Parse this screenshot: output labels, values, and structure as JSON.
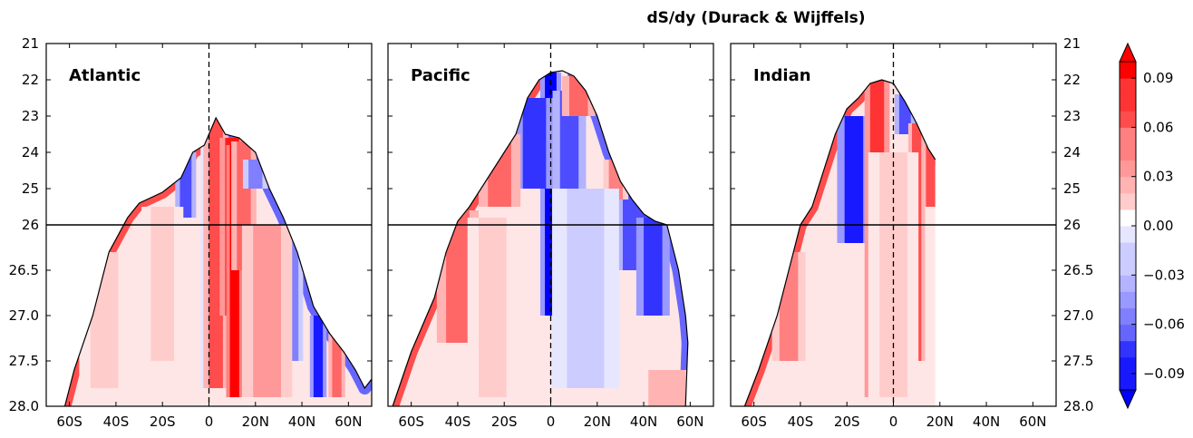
{
  "chart_data": {
    "type": "heatmap",
    "title": "dS/dy (Durack & Wijffels)",
    "x": {
      "range": [
        -70,
        70
      ],
      "ticks": [
        -60,
        -40,
        -20,
        0,
        20,
        40,
        60
      ],
      "tick_labels": [
        "60S",
        "40S",
        "20S",
        "0",
        "20N",
        "40N",
        "60N"
      ]
    },
    "y": {
      "inverted": true,
      "upper_segment": {
        "range": [
          21,
          26
        ],
        "ticks": [
          21,
          22,
          23,
          24,
          25,
          26
        ],
        "tick_labels": [
          "21",
          "22",
          "23",
          "24",
          "25",
          "26"
        ]
      },
      "lower_segment": {
        "range": [
          26,
          28
        ],
        "ticks": [
          26.5,
          27.0,
          27.5,
          28.0
        ],
        "tick_labels": [
          "26.5",
          "27.0",
          "27.5",
          "28.0"
        ]
      },
      "break_value": 26
    },
    "colorbar": {
      "ticks": [
        0.09,
        0.06,
        0.03,
        0.0,
        -0.03,
        -0.06,
        -0.09
      ],
      "tick_labels": [
        "0.09",
        "0.06",
        "0.03",
        "0.00",
        "−0.03",
        "−0.06",
        "−0.09"
      ],
      "range": [
        -0.1,
        0.1
      ],
      "levels": 20,
      "extend": "both",
      "colors": {
        "negative": "#0000ff",
        "zero": "#ffffff",
        "positive": "#ff0000"
      }
    },
    "panels": [
      {
        "name": "Atlantic",
        "outcrop": [
          [
            -62,
            28.0
          ],
          [
            -58,
            27.6
          ],
          [
            -50,
            27.0
          ],
          [
            -43,
            26.3
          ],
          [
            -35,
            25.8
          ],
          [
            -30,
            25.4
          ],
          [
            -20,
            25.1
          ],
          [
            -12,
            24.7
          ],
          [
            -7,
            24.0
          ],
          [
            -2,
            23.8
          ],
          [
            3,
            23.05
          ],
          [
            7,
            23.5
          ],
          [
            13,
            23.6
          ],
          [
            20,
            24.0
          ],
          [
            26,
            25.0
          ],
          [
            32,
            25.8
          ],
          [
            38,
            26.3
          ],
          [
            45,
            26.9
          ],
          [
            52,
            27.2
          ],
          [
            58,
            27.4
          ],
          [
            63,
            27.6
          ],
          [
            67,
            27.8
          ],
          [
            70,
            27.7
          ]
        ],
        "features": [
          {
            "x": 0,
            "y0": 23.5,
            "y1": 27.8,
            "w": 2,
            "v": -0.02
          },
          {
            "x": 3,
            "y0": 23.1,
            "y1": 27.8,
            "w": 3,
            "v": 0.07
          },
          {
            "x": 10,
            "y0": 23.6,
            "y1": 27.0,
            "w": 3,
            "v": 0.09
          },
          {
            "x": 11,
            "y0": 23.8,
            "y1": 27.9,
            "w": 2,
            "v": 0.1
          },
          {
            "x": 15,
            "y0": 23.7,
            "y1": 26.5,
            "w": 3,
            "v": 0.06
          },
          {
            "x": -10,
            "y0": 24.0,
            "y1": 25.8,
            "w": 2.5,
            "v": -0.07
          },
          {
            "x": 20,
            "y0": 24.2,
            "y1": 25.0,
            "w": 3,
            "v": -0.05
          },
          {
            "x": 36,
            "y0": 26.0,
            "y1": 27.5,
            "w": 2.5,
            "v": -0.05
          },
          {
            "x": 47,
            "y0": 27.0,
            "y1": 27.9,
            "w": 2,
            "v": -0.09
          },
          {
            "x": 55,
            "y0": 27.2,
            "y1": 27.9,
            "w": 2,
            "v": 0.06
          },
          {
            "x": 25,
            "y0": 26.0,
            "y1": 27.9,
            "w": 6,
            "v": 0.035
          },
          {
            "x": -45,
            "y0": 26.3,
            "y1": 27.8,
            "w": 6,
            "v": 0.015
          },
          {
            "x": -20,
            "y0": 25.5,
            "y1": 27.5,
            "w": 5,
            "v": 0.015
          }
        ]
      },
      {
        "name": "Pacific",
        "outcrop": [
          [
            -68,
            28.0
          ],
          [
            -60,
            27.4
          ],
          [
            -50,
            26.8
          ],
          [
            -45,
            26.3
          ],
          [
            -40,
            25.9
          ],
          [
            -35,
            25.5
          ],
          [
            -25,
            24.5
          ],
          [
            -15,
            23.5
          ],
          [
            -10,
            22.5
          ],
          [
            -5,
            22.0
          ],
          [
            0,
            21.8
          ],
          [
            5,
            21.75
          ],
          [
            10,
            21.9
          ],
          [
            15,
            22.3
          ],
          [
            20,
            23.0
          ],
          [
            25,
            24.0
          ],
          [
            30,
            24.8
          ],
          [
            35,
            25.3
          ],
          [
            40,
            25.7
          ],
          [
            45,
            25.9
          ],
          [
            50,
            26.0
          ],
          [
            55,
            26.5
          ],
          [
            58,
            27.0
          ],
          [
            59,
            27.3
          ],
          [
            58,
            28.0
          ]
        ],
        "features": [
          {
            "x": 0,
            "y0": 21.8,
            "y1": 27.0,
            "w": 2.5,
            "v": -0.1
          },
          {
            "x": -7,
            "y0": 22.5,
            "y1": 25.0,
            "w": 5,
            "v": -0.08
          },
          {
            "x": 8,
            "y0": 22.3,
            "y1": 25.5,
            "w": 4,
            "v": -0.07
          },
          {
            "x": 12,
            "y0": 21.9,
            "y1": 23.0,
            "w": 4,
            "v": 0.06
          },
          {
            "x": -22,
            "y0": 23.5,
            "y1": 25.5,
            "w": 5,
            "v": 0.06
          },
          {
            "x": -40,
            "y0": 25.6,
            "y1": 27.3,
            "w": 5,
            "v": 0.06
          },
          {
            "x": 37,
            "y0": 25.0,
            "y1": 26.5,
            "w": 6,
            "v": -0.07
          },
          {
            "x": 44,
            "y0": 25.8,
            "y1": 27.0,
            "w": 4,
            "v": -0.08
          },
          {
            "x": 28,
            "y0": 24.2,
            "y1": 25.3,
            "w": 3,
            "v": 0.05
          },
          {
            "x": 15,
            "y0": 25.0,
            "y1": 27.8,
            "w": 8,
            "v": -0.025
          },
          {
            "x": -25,
            "y0": 25.8,
            "y1": 27.9,
            "w": 6,
            "v": 0.02
          },
          {
            "x": 50,
            "y0": 27.6,
            "y1": 28.0,
            "w": 8,
            "v": 0.025
          }
        ]
      },
      {
        "name": "Indian",
        "outcrop": [
          [
            -64,
            28.0
          ],
          [
            -58,
            27.6
          ],
          [
            -50,
            27.0
          ],
          [
            -45,
            26.5
          ],
          [
            -40,
            26.0
          ],
          [
            -35,
            25.5
          ],
          [
            -30,
            24.5
          ],
          [
            -25,
            23.5
          ],
          [
            -20,
            22.8
          ],
          [
            -15,
            22.5
          ],
          [
            -10,
            22.1
          ],
          [
            -5,
            22.0
          ],
          [
            0,
            22.1
          ],
          [
            5,
            22.6
          ],
          [
            10,
            23.2
          ],
          [
            15,
            23.9
          ],
          [
            18,
            24.2
          ]
        ],
        "features": [
          {
            "x": -17,
            "y0": 23.0,
            "y1": 26.2,
            "w": 4,
            "v": -0.09
          },
          {
            "x": -7,
            "y0": 22.0,
            "y1": 27.9,
            "w": 3,
            "v": 0.08
          },
          {
            "x": 5,
            "y0": 22.4,
            "y1": 23.5,
            "w": 2.5,
            "v": -0.07
          },
          {
            "x": 10,
            "y0": 23.2,
            "y1": 27.5,
            "w": 2,
            "v": 0.07
          },
          {
            "x": 16,
            "y0": 23.7,
            "y1": 25.5,
            "w": 2,
            "v": 0.07
          },
          {
            "x": -45,
            "y0": 26.3,
            "y1": 27.5,
            "w": 4,
            "v": 0.05
          },
          {
            "x": 0,
            "y0": 24.0,
            "y1": 27.9,
            "w": 6,
            "v": 0.02
          }
        ]
      }
    ]
  }
}
